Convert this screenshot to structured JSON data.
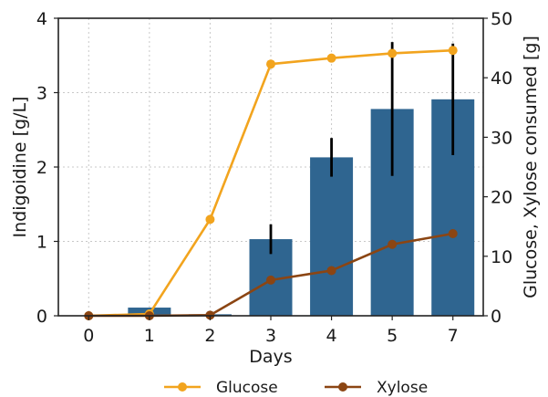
{
  "chart_data": {
    "type": "bar",
    "categories": [
      "0",
      "1",
      "2",
      "3",
      "4",
      "5",
      "7"
    ],
    "xlabel": "Days",
    "ylabel": "Indigoidine [g/L]",
    "ylim": [
      0,
      4
    ],
    "yticks": [
      0,
      1,
      2,
      3,
      4
    ],
    "y2label": "Glucose, Xylose consumed [g]",
    "y2lim": [
      0,
      50
    ],
    "y2ticks": [
      0,
      10,
      20,
      30,
      40,
      50
    ],
    "grid": true,
    "legend_position": "bottom",
    "bars": {
      "axis": "left",
      "color": "#2f6590",
      "values": [
        0.0,
        0.11,
        0.02,
        1.03,
        2.13,
        2.78,
        2.91
      ],
      "error": [
        0,
        0,
        0,
        0.2,
        0.26,
        0.9,
        0.75
      ]
    },
    "series": [
      {
        "name": "Glucose",
        "axis": "right",
        "color": "#f2a41e",
        "values": [
          0.0,
          0.3,
          16.2,
          42.3,
          43.3,
          44.1,
          44.6
        ]
      },
      {
        "name": "Xylose",
        "axis": "right",
        "color": "#8b4513",
        "values": [
          0.0,
          0.0,
          0.1,
          6.0,
          7.6,
          12.0,
          13.8
        ]
      }
    ]
  }
}
